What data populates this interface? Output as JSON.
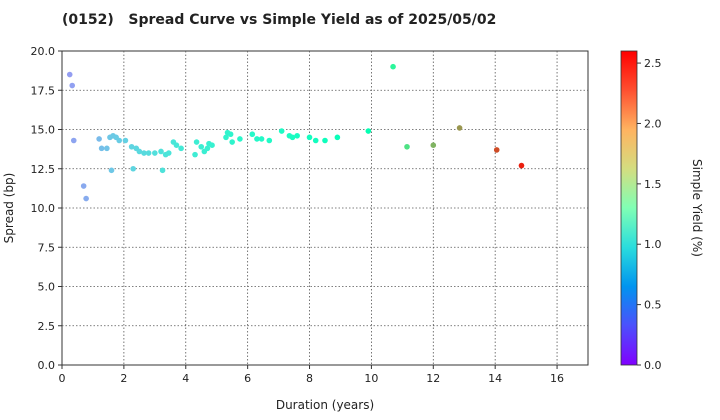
{
  "chart_data": {
    "type": "scatter",
    "title": "(0152)   Spread Curve vs Simple Yield as of 2025/05/02",
    "xlabel": "Duration (years)",
    "ylabel": "Spread (bp)",
    "colorbar_label": "Simple Yield (%)",
    "xlim": [
      0,
      17
    ],
    "ylim": [
      0,
      20
    ],
    "clim": [
      0,
      2.6
    ],
    "x_ticks": [
      "0",
      "2",
      "4",
      "6",
      "8",
      "10",
      "12",
      "14",
      "16"
    ],
    "y_ticks": [
      "0.0",
      "2.5",
      "5.0",
      "7.5",
      "10.0",
      "12.5",
      "15.0",
      "17.5",
      "20.0"
    ],
    "c_ticks": [
      "0.0",
      "0.5",
      "1.0",
      "1.5",
      "2.0",
      "2.5"
    ],
    "grid": true,
    "colormap": "rainbow",
    "points": [
      {
        "x": 0.25,
        "y": 18.5,
        "c": 0.55
      },
      {
        "x": 0.33,
        "y": 17.8,
        "c": 0.56
      },
      {
        "x": 0.38,
        "y": 14.3,
        "c": 0.58
      },
      {
        "x": 0.7,
        "y": 11.4,
        "c": 0.6
      },
      {
        "x": 0.78,
        "y": 10.6,
        "c": 0.61
      },
      {
        "x": 1.2,
        "y": 14.4,
        "c": 0.68
      },
      {
        "x": 1.28,
        "y": 13.8,
        "c": 0.7
      },
      {
        "x": 1.45,
        "y": 13.8,
        "c": 0.72
      },
      {
        "x": 1.55,
        "y": 14.5,
        "c": 0.74
      },
      {
        "x": 1.6,
        "y": 12.4,
        "c": 0.74
      },
      {
        "x": 1.65,
        "y": 14.6,
        "c": 0.75
      },
      {
        "x": 1.75,
        "y": 14.5,
        "c": 0.76
      },
      {
        "x": 1.85,
        "y": 14.3,
        "c": 0.77
      },
      {
        "x": 2.05,
        "y": 14.3,
        "c": 0.79
      },
      {
        "x": 2.25,
        "y": 13.9,
        "c": 0.81
      },
      {
        "x": 2.3,
        "y": 12.5,
        "c": 0.82
      },
      {
        "x": 2.4,
        "y": 13.8,
        "c": 0.83
      },
      {
        "x": 2.5,
        "y": 13.6,
        "c": 0.84
      },
      {
        "x": 2.65,
        "y": 13.5,
        "c": 0.85
      },
      {
        "x": 2.8,
        "y": 13.5,
        "c": 0.86
      },
      {
        "x": 3.0,
        "y": 13.5,
        "c": 0.88
      },
      {
        "x": 3.2,
        "y": 13.6,
        "c": 0.9
      },
      {
        "x": 3.25,
        "y": 12.4,
        "c": 0.9
      },
      {
        "x": 3.35,
        "y": 13.4,
        "c": 0.91
      },
      {
        "x": 3.45,
        "y": 13.5,
        "c": 0.92
      },
      {
        "x": 3.6,
        "y": 14.2,
        "c": 0.93
      },
      {
        "x": 3.7,
        "y": 14.0,
        "c": 0.94
      },
      {
        "x": 3.85,
        "y": 13.8,
        "c": 0.95
      },
      {
        "x": 4.3,
        "y": 13.4,
        "c": 0.98
      },
      {
        "x": 4.35,
        "y": 14.2,
        "c": 0.99
      },
      {
        "x": 4.5,
        "y": 13.9,
        "c": 1.0
      },
      {
        "x": 4.6,
        "y": 13.6,
        "c": 1.0
      },
      {
        "x": 4.7,
        "y": 13.8,
        "c": 1.01
      },
      {
        "x": 4.75,
        "y": 14.1,
        "c": 1.01
      },
      {
        "x": 4.85,
        "y": 14.0,
        "c": 1.02
      },
      {
        "x": 5.3,
        "y": 14.5,
        "c": 1.05
      },
      {
        "x": 5.35,
        "y": 14.8,
        "c": 1.05
      },
      {
        "x": 5.45,
        "y": 14.7,
        "c": 1.06
      },
      {
        "x": 5.5,
        "y": 14.2,
        "c": 1.06
      },
      {
        "x": 5.75,
        "y": 14.4,
        "c": 1.08
      },
      {
        "x": 6.15,
        "y": 14.7,
        "c": 1.1
      },
      {
        "x": 6.3,
        "y": 14.4,
        "c": 1.11
      },
      {
        "x": 6.45,
        "y": 14.4,
        "c": 1.12
      },
      {
        "x": 6.7,
        "y": 14.3,
        "c": 1.13
      },
      {
        "x": 7.1,
        "y": 14.9,
        "c": 1.15
      },
      {
        "x": 7.35,
        "y": 14.6,
        "c": 1.17
      },
      {
        "x": 7.45,
        "y": 14.5,
        "c": 1.17
      },
      {
        "x": 7.6,
        "y": 14.6,
        "c": 1.18
      },
      {
        "x": 8.0,
        "y": 14.5,
        "c": 1.2
      },
      {
        "x": 8.2,
        "y": 14.3,
        "c": 1.21
      },
      {
        "x": 8.5,
        "y": 14.3,
        "c": 1.23
      },
      {
        "x": 8.9,
        "y": 14.5,
        "c": 1.25
      },
      {
        "x": 9.9,
        "y": 14.9,
        "c": 1.32
      },
      {
        "x": 10.7,
        "y": 19.0,
        "c": 1.52
      },
      {
        "x": 11.15,
        "y": 13.9,
        "c": 1.7
      },
      {
        "x": 12.0,
        "y": 14.0,
        "c": 1.95
      },
      {
        "x": 12.85,
        "y": 15.1,
        "c": 2.08
      },
      {
        "x": 14.05,
        "y": 13.7,
        "c": 2.35
      },
      {
        "x": 14.85,
        "y": 12.7,
        "c": 2.5
      }
    ]
  }
}
